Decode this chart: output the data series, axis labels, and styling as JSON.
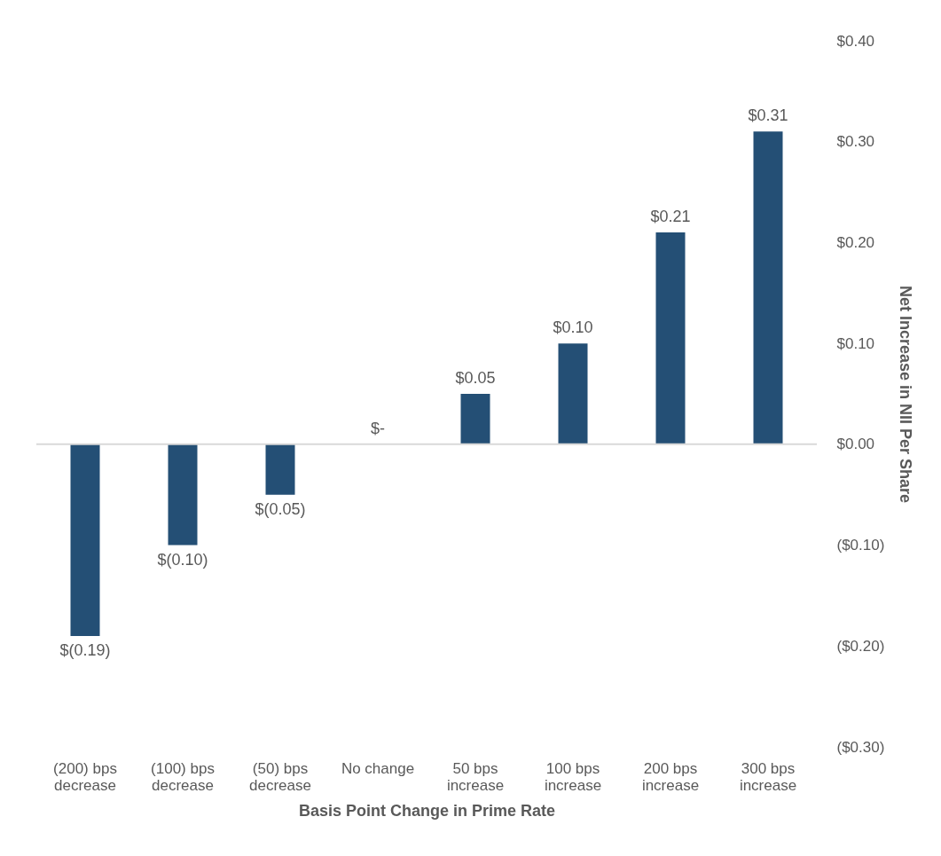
{
  "chart_data": {
    "type": "bar",
    "xlabel": "Basis Point Change in Prime Rate",
    "ylabel": "Net Increase in NII Per Share",
    "categories": [
      "(200) bps decrease",
      "(100) bps decrease",
      "(50) bps decrease",
      "No change",
      "50 bps increase",
      "100 bps increase",
      "200 bps increase",
      "300 bps increase"
    ],
    "values": [
      -0.19,
      -0.1,
      -0.05,
      0,
      0.05,
      0.1,
      0.21,
      0.31
    ],
    "value_labels": [
      "$(0.19)",
      "$(0.10)",
      "$(0.05)",
      "$-",
      "$0.05",
      "$0.10",
      "$0.21",
      "$0.31"
    ],
    "color": "#244f75",
    "ylim": [
      -0.3,
      0.4
    ],
    "yticks": [
      {
        "value": 0.4,
        "label": "$0.40"
      },
      {
        "value": 0.3,
        "label": "$0.30"
      },
      {
        "value": 0.2,
        "label": "$0.20"
      },
      {
        "value": 0.1,
        "label": "$0.10"
      },
      {
        "value": 0,
        "label": "$0.00"
      },
      {
        "value": -0.1,
        "label": "($0.10)"
      },
      {
        "value": -0.2,
        "label": "($0.20)"
      },
      {
        "value": -0.3,
        "label": "($0.30)"
      }
    ],
    "ref_lines": [
      {
        "axis": "y",
        "value": 0,
        "color": "#d9d9d9"
      }
    ],
    "grid": false
  }
}
